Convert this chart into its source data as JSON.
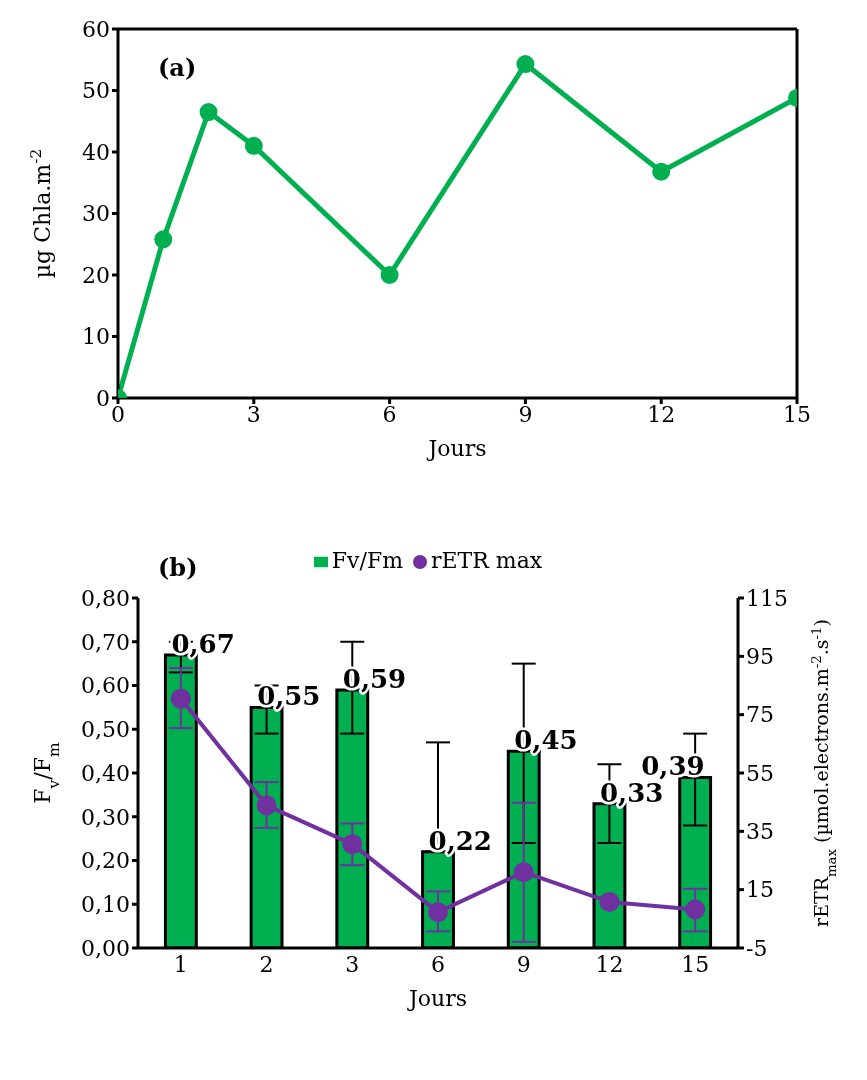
{
  "chart_data": [
    {
      "type": "line",
      "x": [
        0,
        1,
        2,
        3,
        6,
        9,
        12,
        15
      ],
      "values": [
        0,
        25.8,
        46.5,
        41,
        20,
        54.3,
        36.8,
        48.8
      ],
      "color": "#00b050",
      "xlim": [
        0,
        15
      ],
      "xticks": [
        0,
        3,
        6,
        9,
        12,
        15
      ],
      "ylim": [
        0,
        60
      ],
      "yticks": [
        0,
        10,
        20,
        30,
        40,
        50,
        60
      ],
      "xlabel": "Jours",
      "ylabel": "µg Chla.m$^{-2}$",
      "annotations": [
        "(a)"
      ],
      "grid": false,
      "legend": false,
      "marker": "circle"
    },
    {
      "type": "bar",
      "categories": [
        "1",
        "2",
        "3",
        "6",
        "9",
        "12",
        "15"
      ],
      "series": [
        {
          "name": "Fv/Fm",
          "type": "bar",
          "color": "#00b050",
          "values": [
            0.67,
            0.55,
            0.59,
            0.22,
            0.45,
            0.33,
            0.39
          ],
          "errors": [
            [
              0.63,
              0.7
            ],
            [
              0.49,
              0.6
            ],
            [
              0.49,
              0.7
            ],
            [
              0.22,
              0.47
            ],
            [
              0.24,
              0.65
            ],
            [
              0.24,
              0.42
            ],
            [
              0.28,
              0.49
            ]
          ],
          "value_labels": [
            "0,67",
            "0,55",
            "0,59",
            "0,22",
            "0,45",
            "0,33",
            "0,39"
          ]
        },
        {
          "name": "rETR max",
          "type": "line",
          "axis": "y2",
          "color": "#7030a0",
          "values": [
            80.5,
            43.9,
            30.6,
            7.3,
            21,
            10.8,
            8.2
          ],
          "errors": [
            [
              70.4,
              91
            ],
            [
              36.2,
              51.9
            ],
            [
              23.4,
              37.7
            ],
            [
              0.7,
              14.4
            ],
            [
              -2.9,
              44.8
            ],
            null,
            [
              0.7,
              15.3
            ]
          ]
        }
      ],
      "ylim": [
        0,
        0.8
      ],
      "yticks": [
        {
          "value": 0,
          "label": "0,00"
        },
        {
          "value": 0.1,
          "label": "0,10"
        },
        {
          "value": 0.2,
          "label": "0,20"
        },
        {
          "value": 0.3,
          "label": "0,30"
        },
        {
          "value": 0.4,
          "label": "0,40"
        },
        {
          "value": 0.5,
          "label": "0,50"
        },
        {
          "value": 0.6,
          "label": "0,60"
        },
        {
          "value": 0.7,
          "label": "0,70"
        },
        {
          "value": 0.8,
          "label": "0,80"
        }
      ],
      "y2lim": [
        -5,
        115
      ],
      "y2ticks": [
        -5,
        15,
        35,
        55,
        75,
        95,
        115
      ],
      "xlabel": "Jours",
      "ylabel": "F$_{v}$/F$_{m}$",
      "y2label": "rETR$_{max}$ (µmol.electrons.m$^{-2}$.s$^{-1}$)",
      "annotations": [
        "(b)"
      ],
      "grid": false,
      "legend": "top",
      "marker": "circle"
    }
  ]
}
